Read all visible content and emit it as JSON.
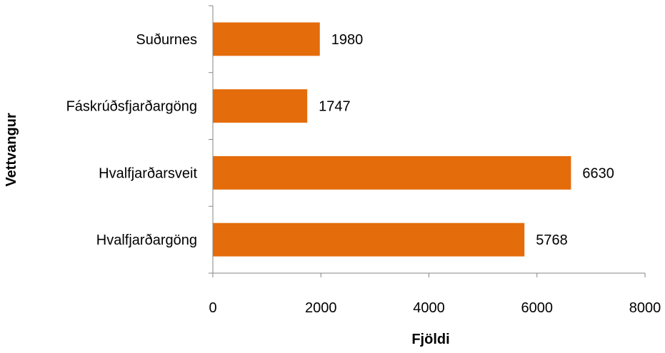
{
  "chart_data": {
    "type": "bar",
    "orientation": "horizontal",
    "categories": [
      "Suðurnes",
      "Fáskrúðsfjarðargöng",
      "Hvalfjarðarsveit",
      "Hvalfjarðargöng"
    ],
    "values": [
      1980,
      1747,
      6630,
      5768
    ],
    "value_labels": [
      "1980",
      "1747",
      "6630",
      "5768"
    ],
    "xlabel": "Fjöldi",
    "ylabel": "Vettvangur",
    "xlim": [
      0,
      8000
    ],
    "xticks": [
      0,
      2000,
      4000,
      6000,
      8000
    ],
    "xtick_labels": [
      "0",
      "2000",
      "4000",
      "6000",
      "8000"
    ],
    "bar_color": "#E46C0A",
    "axis_color": "#868686",
    "grid": false,
    "legend": "none"
  }
}
